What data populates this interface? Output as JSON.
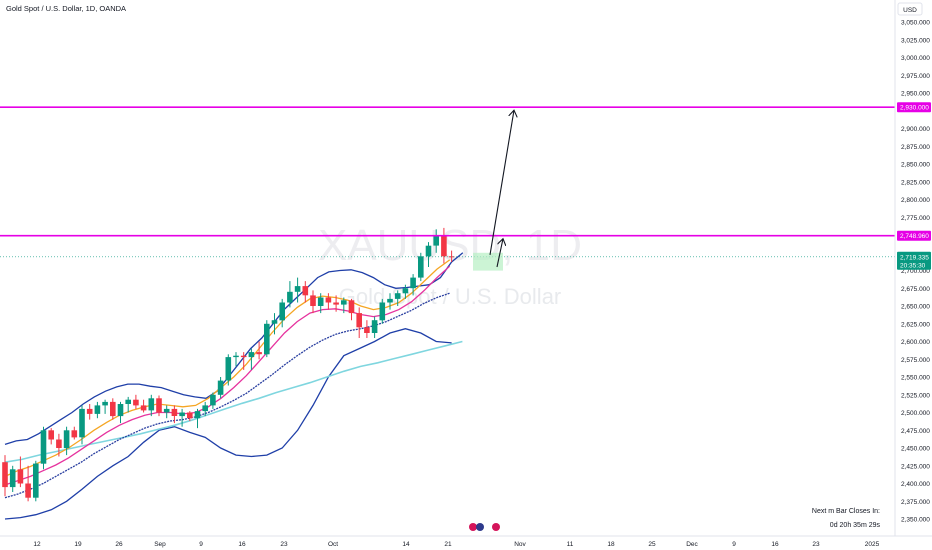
{
  "header": {
    "title": "Gold Spot / U.S. Dollar, 1D, OANDA"
  },
  "watermark": {
    "symbol": "XAUUSD, 1D",
    "description": "Gold Spot / U.S. Dollar"
  },
  "countdown": {
    "line1": "Next m Bar Closes In:",
    "line2": "0d 20h 35m 29s"
  },
  "price_axis": {
    "currency": "USD",
    "ticks": [
      "3,050.000",
      "3,025.000",
      "3,000.000",
      "2,975.000",
      "2,950.000",
      "2,900.000",
      "2,875.000",
      "2,850.000",
      "2,825.000",
      "2,800.000",
      "2,775.000",
      "2,700.000",
      "2,675.000",
      "2,650.000",
      "2,625.000",
      "2,600.000",
      "2,575.000",
      "2,550.000",
      "2,525.000",
      "2,500.000",
      "2,475.000",
      "2,450.000",
      "2,425.000",
      "2,400.000",
      "2,375.000",
      "2,350.000"
    ],
    "labels": [
      {
        "text": "2,930.000",
        "color": "#e600e6",
        "price": 2930
      },
      {
        "text": "2,748.960",
        "color": "#e600e6",
        "price": 2748.96
      },
      {
        "text": "2,719.335",
        "sub": "20:35:30",
        "color": "#089981",
        "price": 2719.335
      }
    ]
  },
  "time_axis": {
    "ticks": [
      "12",
      "19",
      "26",
      "Sep",
      "9",
      "16",
      "23",
      "Oct",
      "14",
      "21",
      "Nov",
      "11",
      "18",
      "25",
      "Dec",
      "9",
      "16",
      "23",
      "2025"
    ]
  },
  "chart_data": {
    "type": "candlestick",
    "title": "Gold Spot / U.S. Dollar, 1D, OANDA",
    "symbol": "XAUUSD",
    "ylim": [
      2340,
      3060
    ],
    "candles": [
      {
        "o": 2430,
        "h": 2440,
        "l": 2382,
        "c": 2395,
        "dir": "down"
      },
      {
        "o": 2395,
        "h": 2425,
        "l": 2388,
        "c": 2420,
        "dir": "up"
      },
      {
        "o": 2420,
        "h": 2438,
        "l": 2395,
        "c": 2400,
        "dir": "down"
      },
      {
        "o": 2400,
        "h": 2425,
        "l": 2375,
        "c": 2380,
        "dir": "down"
      },
      {
        "o": 2380,
        "h": 2432,
        "l": 2375,
        "c": 2428,
        "dir": "up"
      },
      {
        "o": 2428,
        "h": 2480,
        "l": 2420,
        "c": 2475,
        "dir": "up"
      },
      {
        "o": 2475,
        "h": 2478,
        "l": 2455,
        "c": 2462,
        "dir": "down"
      },
      {
        "o": 2462,
        "h": 2470,
        "l": 2438,
        "c": 2450,
        "dir": "down"
      },
      {
        "o": 2450,
        "h": 2480,
        "l": 2440,
        "c": 2475,
        "dir": "up"
      },
      {
        "o": 2475,
        "h": 2480,
        "l": 2462,
        "c": 2465,
        "dir": "down"
      },
      {
        "o": 2465,
        "h": 2510,
        "l": 2455,
        "c": 2505,
        "dir": "up"
      },
      {
        "o": 2505,
        "h": 2512,
        "l": 2490,
        "c": 2498,
        "dir": "down"
      },
      {
        "o": 2498,
        "h": 2515,
        "l": 2492,
        "c": 2510,
        "dir": "up"
      },
      {
        "o": 2510,
        "h": 2518,
        "l": 2498,
        "c": 2515,
        "dir": "up"
      },
      {
        "o": 2515,
        "h": 2520,
        "l": 2490,
        "c": 2495,
        "dir": "down"
      },
      {
        "o": 2495,
        "h": 2515,
        "l": 2485,
        "c": 2512,
        "dir": "up"
      },
      {
        "o": 2512,
        "h": 2522,
        "l": 2500,
        "c": 2518,
        "dir": "up"
      },
      {
        "o": 2518,
        "h": 2525,
        "l": 2505,
        "c": 2510,
        "dir": "down"
      },
      {
        "o": 2510,
        "h": 2518,
        "l": 2500,
        "c": 2503,
        "dir": "down"
      },
      {
        "o": 2503,
        "h": 2525,
        "l": 2495,
        "c": 2520,
        "dir": "up"
      },
      {
        "o": 2520,
        "h": 2524,
        "l": 2495,
        "c": 2500,
        "dir": "down"
      },
      {
        "o": 2500,
        "h": 2510,
        "l": 2492,
        "c": 2505,
        "dir": "up"
      },
      {
        "o": 2505,
        "h": 2510,
        "l": 2485,
        "c": 2495,
        "dir": "down"
      },
      {
        "o": 2495,
        "h": 2505,
        "l": 2480,
        "c": 2500,
        "dir": "up"
      },
      {
        "o": 2500,
        "h": 2502,
        "l": 2488,
        "c": 2492,
        "dir": "down"
      },
      {
        "o": 2492,
        "h": 2505,
        "l": 2478,
        "c": 2502,
        "dir": "up"
      },
      {
        "o": 2502,
        "h": 2515,
        "l": 2495,
        "c": 2510,
        "dir": "up"
      },
      {
        "o": 2510,
        "h": 2528,
        "l": 2505,
        "c": 2525,
        "dir": "up"
      },
      {
        "o": 2525,
        "h": 2550,
        "l": 2520,
        "c": 2545,
        "dir": "up"
      },
      {
        "o": 2545,
        "h": 2582,
        "l": 2538,
        "c": 2578,
        "dir": "up"
      },
      {
        "o": 2578,
        "h": 2585,
        "l": 2565,
        "c": 2580,
        "dir": "up"
      },
      {
        "o": 2580,
        "h": 2585,
        "l": 2560,
        "c": 2578,
        "dir": "down"
      },
      {
        "o": 2578,
        "h": 2590,
        "l": 2560,
        "c": 2585,
        "dir": "up"
      },
      {
        "o": 2585,
        "h": 2600,
        "l": 2575,
        "c": 2582,
        "dir": "down"
      },
      {
        "o": 2582,
        "h": 2630,
        "l": 2578,
        "c": 2625,
        "dir": "up"
      },
      {
        "o": 2625,
        "h": 2640,
        "l": 2610,
        "c": 2630,
        "dir": "up"
      },
      {
        "o": 2630,
        "h": 2660,
        "l": 2620,
        "c": 2655,
        "dir": "up"
      },
      {
        "o": 2655,
        "h": 2685,
        "l": 2648,
        "c": 2670,
        "dir": "up"
      },
      {
        "o": 2670,
        "h": 2690,
        "l": 2655,
        "c": 2678,
        "dir": "up"
      },
      {
        "o": 2678,
        "h": 2685,
        "l": 2655,
        "c": 2665,
        "dir": "down"
      },
      {
        "o": 2665,
        "h": 2672,
        "l": 2640,
        "c": 2650,
        "dir": "down"
      },
      {
        "o": 2650,
        "h": 2668,
        "l": 2640,
        "c": 2662,
        "dir": "up"
      },
      {
        "o": 2662,
        "h": 2668,
        "l": 2645,
        "c": 2655,
        "dir": "down"
      },
      {
        "o": 2655,
        "h": 2665,
        "l": 2642,
        "c": 2652,
        "dir": "down"
      },
      {
        "o": 2652,
        "h": 2662,
        "l": 2640,
        "c": 2658,
        "dir": "up"
      },
      {
        "o": 2658,
        "h": 2660,
        "l": 2630,
        "c": 2640,
        "dir": "down"
      },
      {
        "o": 2640,
        "h": 2648,
        "l": 2605,
        "c": 2620,
        "dir": "down"
      },
      {
        "o": 2620,
        "h": 2630,
        "l": 2605,
        "c": 2612,
        "dir": "down"
      },
      {
        "o": 2612,
        "h": 2635,
        "l": 2605,
        "c": 2630,
        "dir": "up"
      },
      {
        "o": 2630,
        "h": 2660,
        "l": 2625,
        "c": 2655,
        "dir": "up"
      },
      {
        "o": 2655,
        "h": 2668,
        "l": 2645,
        "c": 2660,
        "dir": "up"
      },
      {
        "o": 2660,
        "h": 2672,
        "l": 2650,
        "c": 2668,
        "dir": "up"
      },
      {
        "o": 2668,
        "h": 2680,
        "l": 2660,
        "c": 2675,
        "dir": "up"
      },
      {
        "o": 2675,
        "h": 2695,
        "l": 2665,
        "c": 2690,
        "dir": "up"
      },
      {
        "o": 2690,
        "h": 2725,
        "l": 2685,
        "c": 2720,
        "dir": "up"
      },
      {
        "o": 2720,
        "h": 2740,
        "l": 2705,
        "c": 2735,
        "dir": "up"
      },
      {
        "o": 2735,
        "h": 2758,
        "l": 2725,
        "c": 2748,
        "dir": "up"
      },
      {
        "o": 2748,
        "h": 2760,
        "l": 2710,
        "c": 2720,
        "dir": "down"
      },
      {
        "o": 2720,
        "h": 2728,
        "l": 2712,
        "c": 2719,
        "dir": "down"
      }
    ],
    "indicators": {
      "bb_upper": [
        2455,
        2460,
        2462,
        2470,
        2480,
        2490,
        2500,
        2512,
        2522,
        2530,
        2536,
        2540,
        2540,
        2537,
        2535,
        2530,
        2525,
        2522,
        2520,
        2530,
        2550,
        2570,
        2590,
        2605,
        2625,
        2645,
        2660,
        2675,
        2690,
        2698,
        2700,
        2701,
        2697,
        2690,
        2680,
        2675,
        2676,
        2678,
        2680,
        2690,
        2712,
        2725
      ],
      "bb_lower": [
        2350,
        2352,
        2356,
        2363,
        2375,
        2392,
        2410,
        2425,
        2438,
        2458,
        2475,
        2480,
        2472,
        2465,
        2450,
        2440,
        2438,
        2440,
        2450,
        2475,
        2510,
        2550,
        2580,
        2590,
        2600,
        2612,
        2618,
        2612,
        2600,
        2598
      ],
      "sma_long": [
        2430,
        2434,
        2440,
        2445,
        2450,
        2455,
        2460,
        2465,
        2470,
        2476,
        2482,
        2489,
        2497,
        2505,
        2513,
        2520,
        2528,
        2535,
        2542,
        2550,
        2558,
        2565,
        2570,
        2576,
        2582,
        2588,
        2594,
        2600
      ],
      "ema_orange": [
        2410,
        2418,
        2424,
        2432,
        2440,
        2450,
        2462,
        2475,
        2486,
        2496,
        2503,
        2508,
        2512,
        2510,
        2508,
        2510,
        2520,
        2535,
        2550,
        2568,
        2590,
        2612,
        2632,
        2648,
        2660,
        2664,
        2662,
        2658,
        2650,
        2645,
        2648,
        2655,
        2668,
        2685,
        2702,
        2715
      ],
      "ema_magenta": [
        2398,
        2404,
        2410,
        2418,
        2426,
        2436,
        2448,
        2460,
        2472,
        2482,
        2490,
        2496,
        2500,
        2500,
        2498,
        2500,
        2508,
        2520,
        2535,
        2552,
        2572,
        2592,
        2612,
        2628,
        2640,
        2645,
        2646,
        2643,
        2638,
        2635,
        2638,
        2645,
        2656,
        2672,
        2690,
        2706
      ],
      "ema_blue_dotted": [
        2380,
        2385,
        2392,
        2400,
        2410,
        2420,
        2430,
        2442,
        2452,
        2462,
        2470,
        2478,
        2484,
        2488,
        2490,
        2494,
        2500,
        2508,
        2517,
        2527,
        2540,
        2553,
        2567,
        2580,
        2592,
        2602,
        2610,
        2615,
        2618,
        2622,
        2628,
        2636,
        2644,
        2654,
        2662,
        2668
      ]
    },
    "levels": [
      {
        "price": 2930,
        "label": "2,930.000",
        "color": "#e600e6"
      },
      {
        "price": 2748.96,
        "label": "2,748.960",
        "color": "#e600e6"
      }
    ],
    "annotations": [
      {
        "type": "arrow",
        "from_price": 2722,
        "to_price": 2930
      },
      {
        "type": "arrow",
        "from_price": 2728,
        "to_price": 2748.96
      }
    ],
    "last_price": 2719.335
  }
}
